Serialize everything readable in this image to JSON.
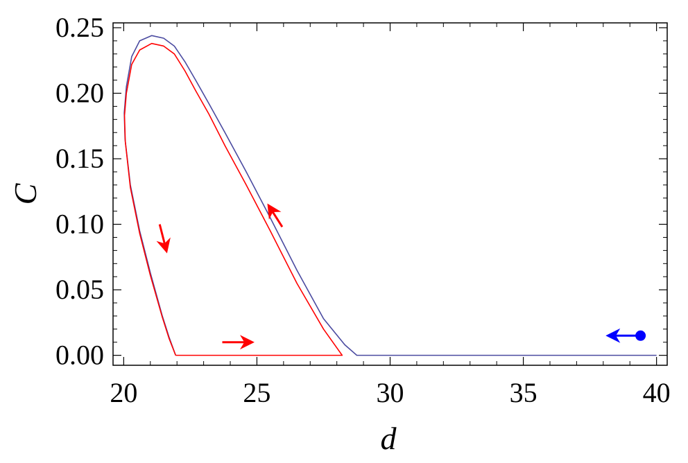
{
  "chart_data": {
    "type": "line",
    "title": "",
    "xlabel": "d",
    "ylabel": "C",
    "xlim": [
      20,
      40
    ],
    "ylim": [
      0,
      0.25
    ],
    "xticks": [
      20,
      25,
      30,
      35,
      40
    ],
    "xtick_labels": [
      "20",
      "25",
      "30",
      "35",
      "40"
    ],
    "yticks": [
      0.0,
      0.05,
      0.1,
      0.15,
      0.2,
      0.25
    ],
    "ytick_labels": [
      "0.00",
      "0.05",
      "0.10",
      "0.15",
      "0.20",
      "0.25"
    ],
    "grid": false,
    "series": [
      {
        "color": "#4a4aa0",
        "points": [
          [
            40,
            0
          ],
          [
            36,
            0
          ],
          [
            32,
            0
          ],
          [
            28.75,
            0
          ],
          [
            28.3,
            0.008
          ],
          [
            27.5,
            0.028
          ],
          [
            26.5,
            0.065
          ],
          [
            25.5,
            0.105
          ],
          [
            24.6,
            0.14
          ],
          [
            23.8,
            0.17
          ],
          [
            23.2,
            0.192
          ],
          [
            22.7,
            0.21
          ],
          [
            22.3,
            0.224
          ],
          [
            21.9,
            0.236
          ],
          [
            21.5,
            0.242
          ],
          [
            21.05,
            0.244
          ],
          [
            20.6,
            0.24
          ],
          [
            20.3,
            0.228
          ],
          [
            20.1,
            0.205
          ],
          [
            20.02,
            0.185
          ],
          [
            20.05,
            0.165
          ],
          [
            20.25,
            0.13
          ],
          [
            20.6,
            0.095
          ],
          [
            21.0,
            0.063
          ],
          [
            21.45,
            0.03
          ],
          [
            21.7,
            0.014
          ],
          [
            21.95,
            0
          ]
        ]
      },
      {
        "color": "#ff0000",
        "points": [
          [
            21.95,
            0
          ],
          [
            23,
            0
          ],
          [
            25,
            0
          ],
          [
            27,
            0
          ],
          [
            28.2,
            0
          ],
          [
            27.5,
            0.02
          ],
          [
            26.5,
            0.055
          ],
          [
            25.5,
            0.095
          ],
          [
            24.6,
            0.13
          ],
          [
            23.8,
            0.16
          ],
          [
            23.2,
            0.184
          ],
          [
            22.7,
            0.202
          ],
          [
            22.3,
            0.217
          ],
          [
            21.9,
            0.23
          ],
          [
            21.5,
            0.236
          ],
          [
            21.05,
            0.238
          ],
          [
            20.6,
            0.233
          ],
          [
            20.3,
            0.222
          ],
          [
            20.1,
            0.2
          ],
          [
            20.03,
            0.183
          ],
          [
            20.06,
            0.163
          ],
          [
            20.25,
            0.128
          ],
          [
            20.6,
            0.093
          ],
          [
            21.0,
            0.061
          ],
          [
            21.45,
            0.029
          ],
          [
            21.7,
            0.013
          ],
          [
            21.95,
            0
          ]
        ]
      }
    ],
    "annotations": [
      {
        "kind": "arrow",
        "color": "#ff0000",
        "from": [
          21.35,
          0.1
        ],
        "to": [
          21.6,
          0.08
        ]
      },
      {
        "kind": "arrow",
        "color": "#ff0000",
        "from": [
          25.95,
          0.098
        ],
        "to": [
          25.45,
          0.114
        ]
      },
      {
        "kind": "arrow",
        "color": "#ff0000",
        "from": [
          23.7,
          0.01
        ],
        "to": [
          24.8,
          0.01
        ]
      },
      {
        "kind": "arrow",
        "color": "#0000ff",
        "from": [
          39.4,
          0.015
        ],
        "to": [
          38.2,
          0.015
        ]
      },
      {
        "kind": "point",
        "color": "#0000ff",
        "at": [
          39.4,
          0.015
        ]
      }
    ]
  }
}
